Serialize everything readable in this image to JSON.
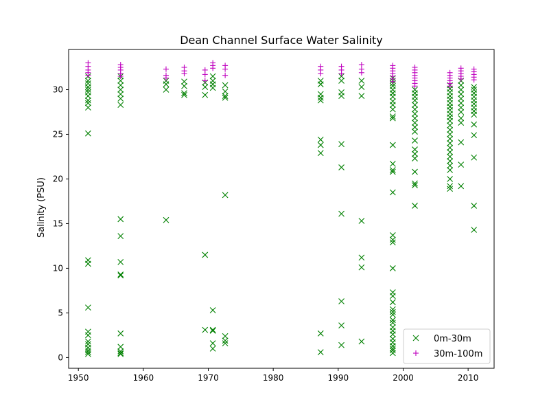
{
  "chart_data": {
    "type": "scatter",
    "title": "Dean Channel Surface Water Salinity",
    "xlabel": "",
    "ylabel": "Salinity (PSU)",
    "xlim": [
      1948.5,
      2014
    ],
    "ylim": [
      -1.2,
      34.5
    ],
    "x_ticks": [
      1950,
      1960,
      1970,
      1980,
      1990,
      2000,
      2010
    ],
    "y_ticks": [
      0,
      5,
      10,
      15,
      20,
      25,
      30
    ],
    "grid": false,
    "legend_position": "lower-right",
    "series": [
      {
        "name": "0m-30m",
        "marker": "x",
        "color": "#008000",
        "points": [
          [
            1951.5,
            31.5
          ],
          [
            1951.5,
            31.0
          ],
          [
            1951.5,
            30.7
          ],
          [
            1951.5,
            30.3
          ],
          [
            1951.5,
            30.0
          ],
          [
            1951.5,
            29.7
          ],
          [
            1951.5,
            29.3
          ],
          [
            1951.5,
            28.8
          ],
          [
            1951.5,
            28.5
          ],
          [
            1951.5,
            28.0
          ],
          [
            1951.5,
            25.1
          ],
          [
            1951.5,
            10.9
          ],
          [
            1951.5,
            10.5
          ],
          [
            1951.5,
            5.6
          ],
          [
            1951.5,
            2.9
          ],
          [
            1951.5,
            2.5
          ],
          [
            1951.5,
            1.8
          ],
          [
            1951.5,
            1.5
          ],
          [
            1951.5,
            1.1
          ],
          [
            1951.5,
            0.8
          ],
          [
            1951.5,
            0.6
          ],
          [
            1951.5,
            0.4
          ],
          [
            1956.5,
            31.5
          ],
          [
            1956.5,
            31.0
          ],
          [
            1956.5,
            30.5
          ],
          [
            1956.5,
            30.0
          ],
          [
            1956.5,
            29.5
          ],
          [
            1956.5,
            29.0
          ],
          [
            1956.5,
            28.3
          ],
          [
            1956.5,
            15.5
          ],
          [
            1956.5,
            13.6
          ],
          [
            1956.5,
            10.7
          ],
          [
            1956.5,
            9.3
          ],
          [
            1956.5,
            9.2
          ],
          [
            1956.5,
            2.7
          ],
          [
            1956.5,
            1.2
          ],
          [
            1956.5,
            0.7
          ],
          [
            1956.5,
            0.5
          ],
          [
            1956.5,
            0.4
          ],
          [
            1963.5,
            31.0
          ],
          [
            1963.5,
            30.6
          ],
          [
            1963.5,
            30.0
          ],
          [
            1963.5,
            15.4
          ],
          [
            1966.3,
            30.9
          ],
          [
            1966.3,
            30.4
          ],
          [
            1966.3,
            29.6
          ],
          [
            1966.3,
            29.4
          ],
          [
            1969.5,
            30.8
          ],
          [
            1969.5,
            30.3
          ],
          [
            1969.5,
            29.4
          ],
          [
            1969.5,
            11.5
          ],
          [
            1969.5,
            3.1
          ],
          [
            1970.7,
            31.5
          ],
          [
            1970.7,
            31.0
          ],
          [
            1970.7,
            30.6
          ],
          [
            1970.7,
            30.2
          ],
          [
            1970.7,
            5.3
          ],
          [
            1970.7,
            3.1
          ],
          [
            1970.7,
            3.0
          ],
          [
            1970.7,
            1.6
          ],
          [
            1970.7,
            1.0
          ],
          [
            1972.6,
            30.5
          ],
          [
            1972.6,
            29.8
          ],
          [
            1972.6,
            29.3
          ],
          [
            1972.6,
            29.1
          ],
          [
            1972.6,
            18.2
          ],
          [
            1972.6,
            2.4
          ],
          [
            1972.6,
            1.9
          ],
          [
            1972.6,
            1.6
          ],
          [
            1987.3,
            31.0
          ],
          [
            1987.3,
            30.6
          ],
          [
            1987.3,
            29.5
          ],
          [
            1987.3,
            29.1
          ],
          [
            1987.3,
            28.8
          ],
          [
            1987.3,
            24.4
          ],
          [
            1987.3,
            23.8
          ],
          [
            1987.3,
            22.9
          ],
          [
            1987.3,
            2.7
          ],
          [
            1987.3,
            0.6
          ],
          [
            1990.5,
            31.5
          ],
          [
            1990.5,
            31.0
          ],
          [
            1990.5,
            29.7
          ],
          [
            1990.5,
            29.3
          ],
          [
            1990.5,
            23.9
          ],
          [
            1990.5,
            21.3
          ],
          [
            1990.5,
            16.1
          ],
          [
            1990.5,
            6.3
          ],
          [
            1990.5,
            3.6
          ],
          [
            1990.5,
            1.4
          ],
          [
            1993.6,
            31.0
          ],
          [
            1993.6,
            30.3
          ],
          [
            1993.6,
            29.3
          ],
          [
            1993.6,
            15.3
          ],
          [
            1993.6,
            11.2
          ],
          [
            1993.6,
            10.1
          ],
          [
            1993.6,
            1.8
          ],
          [
            1998.4,
            31.3
          ],
          [
            1998.4,
            31.0
          ],
          [
            1998.4,
            30.7
          ],
          [
            1998.4,
            30.4
          ],
          [
            1998.4,
            30.0
          ],
          [
            1998.4,
            29.6
          ],
          [
            1998.4,
            29.2
          ],
          [
            1998.4,
            28.7
          ],
          [
            1998.4,
            28.3
          ],
          [
            1998.4,
            27.8
          ],
          [
            1998.4,
            27.0
          ],
          [
            1998.4,
            26.8
          ],
          [
            1998.4,
            23.8
          ],
          [
            1998.4,
            21.7
          ],
          [
            1998.4,
            21.0
          ],
          [
            1998.4,
            20.8
          ],
          [
            1998.4,
            18.5
          ],
          [
            1998.4,
            13.7
          ],
          [
            1998.4,
            13.2
          ],
          [
            1998.4,
            12.9
          ],
          [
            1998.4,
            10.0
          ],
          [
            1998.4,
            7.3
          ],
          [
            1998.4,
            6.9
          ],
          [
            1998.4,
            6.2
          ],
          [
            1998.4,
            5.4
          ],
          [
            1998.4,
            5.1
          ],
          [
            1998.4,
            4.8
          ],
          [
            1998.4,
            4.2
          ],
          [
            1998.4,
            3.9
          ],
          [
            1998.4,
            3.4
          ],
          [
            1998.4,
            3.0
          ],
          [
            1998.4,
            2.6
          ],
          [
            1998.4,
            2.1
          ],
          [
            1998.4,
            1.7
          ],
          [
            1998.4,
            1.3
          ],
          [
            1998.4,
            1.0
          ],
          [
            1998.4,
            0.8
          ],
          [
            1998.4,
            0.5
          ],
          [
            2001.8,
            30.0
          ],
          [
            2001.8,
            29.6
          ],
          [
            2001.8,
            29.2
          ],
          [
            2001.8,
            28.8
          ],
          [
            2001.8,
            28.3
          ],
          [
            2001.8,
            27.8
          ],
          [
            2001.8,
            27.3
          ],
          [
            2001.8,
            26.8
          ],
          [
            2001.8,
            26.3
          ],
          [
            2001.8,
            25.8
          ],
          [
            2001.8,
            25.3
          ],
          [
            2001.8,
            24.3
          ],
          [
            2001.8,
            23.3
          ],
          [
            2001.8,
            22.8
          ],
          [
            2001.8,
            22.3
          ],
          [
            2001.8,
            20.8
          ],
          [
            2001.8,
            19.5
          ],
          [
            2001.8,
            19.3
          ],
          [
            2001.8,
            17.0
          ],
          [
            2007.2,
            30.5
          ],
          [
            2007.2,
            30.1
          ],
          [
            2007.2,
            29.7
          ],
          [
            2007.2,
            29.3
          ],
          [
            2007.2,
            28.9
          ],
          [
            2007.2,
            28.5
          ],
          [
            2007.2,
            28.1
          ],
          [
            2007.2,
            27.7
          ],
          [
            2007.2,
            27.3
          ],
          [
            2007.2,
            26.9
          ],
          [
            2007.2,
            26.5
          ],
          [
            2007.2,
            26.0
          ],
          [
            2007.2,
            25.5
          ],
          [
            2007.2,
            25.0
          ],
          [
            2007.2,
            24.5
          ],
          [
            2007.2,
            24.0
          ],
          [
            2007.2,
            23.5
          ],
          [
            2007.2,
            23.0
          ],
          [
            2007.2,
            22.5
          ],
          [
            2007.2,
            22.0
          ],
          [
            2007.2,
            21.5
          ],
          [
            2007.2,
            21.0
          ],
          [
            2007.2,
            20.0
          ],
          [
            2007.2,
            19.2
          ],
          [
            2007.2,
            18.9
          ],
          [
            2008.9,
            31.0
          ],
          [
            2008.9,
            30.5
          ],
          [
            2008.9,
            30.0
          ],
          [
            2008.9,
            29.5
          ],
          [
            2008.9,
            29.0
          ],
          [
            2008.9,
            28.5
          ],
          [
            2008.9,
            28.0
          ],
          [
            2008.9,
            27.5
          ],
          [
            2008.9,
            26.8
          ],
          [
            2008.9,
            26.3
          ],
          [
            2008.9,
            24.1
          ],
          [
            2008.9,
            21.6
          ],
          [
            2008.9,
            19.2
          ],
          [
            2010.9,
            30.3
          ],
          [
            2010.9,
            30.0
          ],
          [
            2010.9,
            29.6
          ],
          [
            2010.9,
            29.2
          ],
          [
            2010.9,
            28.8
          ],
          [
            2010.9,
            28.4
          ],
          [
            2010.9,
            28.0
          ],
          [
            2010.9,
            27.6
          ],
          [
            2010.9,
            27.2
          ],
          [
            2010.9,
            26.1
          ],
          [
            2010.9,
            24.9
          ],
          [
            2010.9,
            22.4
          ],
          [
            2010.9,
            17.0
          ],
          [
            2010.9,
            14.3
          ]
        ]
      },
      {
        "name": "30m-100m",
        "marker": "+",
        "color": "#bf00bf",
        "points": [
          [
            1951.5,
            33.0
          ],
          [
            1951.5,
            32.6
          ],
          [
            1951.5,
            32.2
          ],
          [
            1951.5,
            31.9
          ],
          [
            1951.5,
            31.6
          ],
          [
            1956.5,
            32.8
          ],
          [
            1956.5,
            32.5
          ],
          [
            1956.5,
            32.2
          ],
          [
            1956.5,
            31.8
          ],
          [
            1956.5,
            31.5
          ],
          [
            1963.5,
            32.3
          ],
          [
            1963.5,
            31.6
          ],
          [
            1963.5,
            31.3
          ],
          [
            1966.3,
            32.5
          ],
          [
            1966.3,
            32.1
          ],
          [
            1966.3,
            31.8
          ],
          [
            1969.5,
            32.2
          ],
          [
            1969.5,
            31.7
          ],
          [
            1969.5,
            31.0
          ],
          [
            1970.7,
            33.0
          ],
          [
            1970.7,
            32.7
          ],
          [
            1970.7,
            32.4
          ],
          [
            1972.6,
            32.7
          ],
          [
            1972.6,
            32.3
          ],
          [
            1972.6,
            31.6
          ],
          [
            1987.3,
            32.6
          ],
          [
            1987.3,
            32.2
          ],
          [
            1987.3,
            31.8
          ],
          [
            1990.5,
            32.6
          ],
          [
            1990.5,
            32.2
          ],
          [
            1990.5,
            31.8
          ],
          [
            1993.6,
            32.8
          ],
          [
            1993.6,
            32.3
          ],
          [
            1993.6,
            31.9
          ],
          [
            1998.4,
            32.7
          ],
          [
            1998.4,
            32.4
          ],
          [
            1998.4,
            32.1
          ],
          [
            1998.4,
            31.8
          ],
          [
            1998.4,
            31.5
          ],
          [
            1998.4,
            31.2
          ],
          [
            1998.4,
            30.9
          ],
          [
            2001.8,
            32.5
          ],
          [
            2001.8,
            32.2
          ],
          [
            2001.8,
            31.9
          ],
          [
            2001.8,
            31.6
          ],
          [
            2001.8,
            31.3
          ],
          [
            2001.8,
            31.0
          ],
          [
            2001.8,
            30.7
          ],
          [
            2001.8,
            30.4
          ],
          [
            2007.2,
            31.9
          ],
          [
            2007.2,
            31.6
          ],
          [
            2007.2,
            31.3
          ],
          [
            2007.2,
            31.0
          ],
          [
            2007.2,
            30.7
          ],
          [
            2007.2,
            30.4
          ],
          [
            2008.9,
            32.4
          ],
          [
            2008.9,
            32.1
          ],
          [
            2008.9,
            31.8
          ],
          [
            2008.9,
            31.5
          ],
          [
            2008.9,
            31.2
          ],
          [
            2010.9,
            32.3
          ],
          [
            2010.9,
            32.0
          ],
          [
            2010.9,
            31.7
          ],
          [
            2010.9,
            31.4
          ],
          [
            2010.9,
            31.1
          ]
        ]
      }
    ]
  }
}
